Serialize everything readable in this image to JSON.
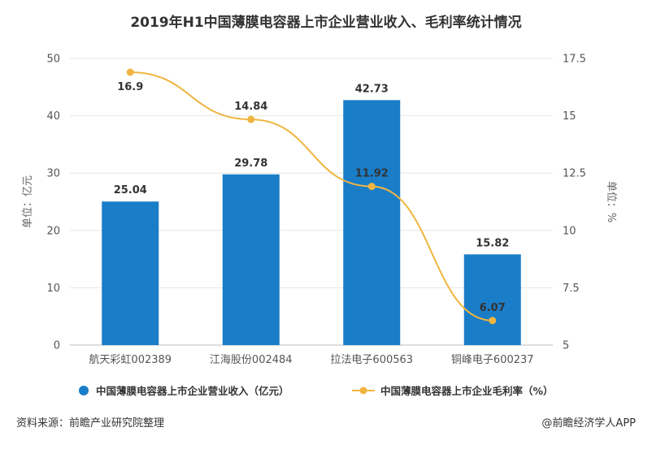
{
  "chart_data": {
    "type": "bar",
    "title": "2019年H1中国薄膜电容器上市企业营业收入、毛利率统计情况",
    "categories": [
      "航天彩虹002389",
      "江海股份002484",
      "拉法电子600563",
      "铜峰电子600237"
    ],
    "series": [
      {
        "name": "中国薄膜电容器上市企业营业收入（亿元）",
        "type": "bar",
        "axis": "left",
        "color": "#1a7dc8",
        "values": [
          25.04,
          29.78,
          42.73,
          15.82
        ],
        "labels": [
          "25.04",
          "29.78",
          "42.73",
          "15.82"
        ]
      },
      {
        "name": "中国薄膜电容器上市企业毛利率（%）",
        "type": "line",
        "axis": "right",
        "color": "#f0b540",
        "values": [
          16.9,
          14.84,
          11.92,
          6.07
        ],
        "labels": [
          "16.9",
          "14.84",
          "11.92",
          "6.07"
        ]
      }
    ],
    "y_left": {
      "label": "单位：亿元",
      "min": 0,
      "max": 50,
      "ticks": [
        "0",
        "10",
        "20",
        "30",
        "40",
        "50"
      ]
    },
    "y_right": {
      "label": "单位：%",
      "min": 5,
      "max": 17.5,
      "ticks": [
        "5",
        "7.5",
        "10",
        "12.5",
        "15",
        "17.5"
      ]
    },
    "grid": true,
    "legend_position": "bottom"
  },
  "footer": {
    "source": "资料来源：前瞻产业研究院整理",
    "brand": "@前瞻经济学人APP"
  }
}
